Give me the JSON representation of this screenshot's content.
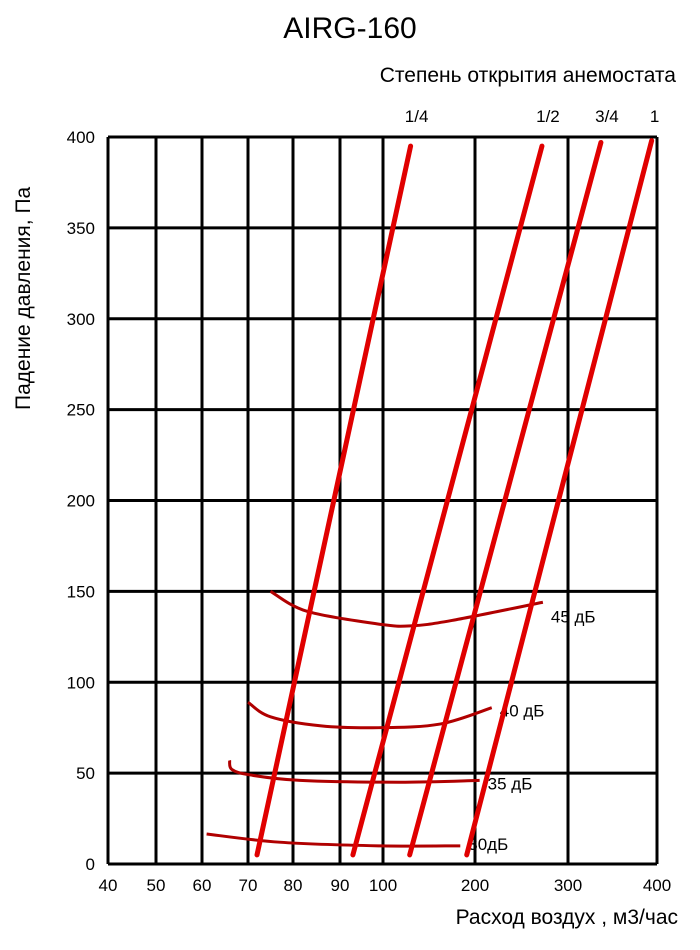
{
  "chart_data": {
    "type": "line",
    "title": "AIRG-160",
    "subtitle": "Степень открытия анемостата",
    "xlabel": "Расход воздух , м3/час",
    "ylabel": "Падение давления, Па",
    "x_ticks": [
      40,
      50,
      60,
      70,
      80,
      90,
      100,
      200,
      300,
      400
    ],
    "y_ticks": [
      0,
      50,
      100,
      150,
      200,
      250,
      300,
      350,
      400
    ],
    "xlim": [
      40,
      400
    ],
    "ylim": [
      0,
      400
    ],
    "grid": true,
    "series": [
      {
        "name": "1/4",
        "color": "#e00000",
        "points": [
          [
            72,
            5
          ],
          [
            130,
            395
          ]
        ]
      },
      {
        "name": "1/2",
        "color": "#e00000",
        "points": [
          [
            93,
            5
          ],
          [
            272,
            395
          ]
        ]
      },
      {
        "name": "3/4",
        "color": "#e00000",
        "points": [
          [
            129,
            5
          ],
          [
            337,
            397
          ]
        ]
      },
      {
        "name": "1",
        "color": "#e00000",
        "points": [
          [
            191,
            5
          ],
          [
            394,
            398
          ]
        ]
      }
    ],
    "noise_curves": [
      {
        "name": "45 дБ",
        "color": "#b00000",
        "points": [
          [
            75,
            150
          ],
          [
            83,
            139
          ],
          [
            99,
            132
          ],
          [
            130,
            131
          ],
          [
            175,
            134
          ],
          [
            273,
            144
          ]
        ]
      },
      {
        "name": "40 дБ",
        "color": "#b00000",
        "points": [
          [
            70,
            89
          ],
          [
            75,
            81
          ],
          [
            86,
            76
          ],
          [
            99,
            75
          ],
          [
            162,
            77
          ],
          [
            218,
            86
          ]
        ]
      },
      {
        "name": "35 дБ",
        "color": "#b00000",
        "points": [
          [
            66,
            57
          ],
          [
            66.5,
            52
          ],
          [
            70.5,
            49
          ],
          [
            81.5,
            46
          ],
          [
            118,
            45
          ],
          [
            205,
            46
          ]
        ]
      },
      {
        "name": "30дБ",
        "color": "#b00000",
        "points": [
          [
            61,
            16.5
          ],
          [
            77,
            12
          ],
          [
            99,
            10
          ],
          [
            184,
            10
          ]
        ]
      }
    ]
  }
}
